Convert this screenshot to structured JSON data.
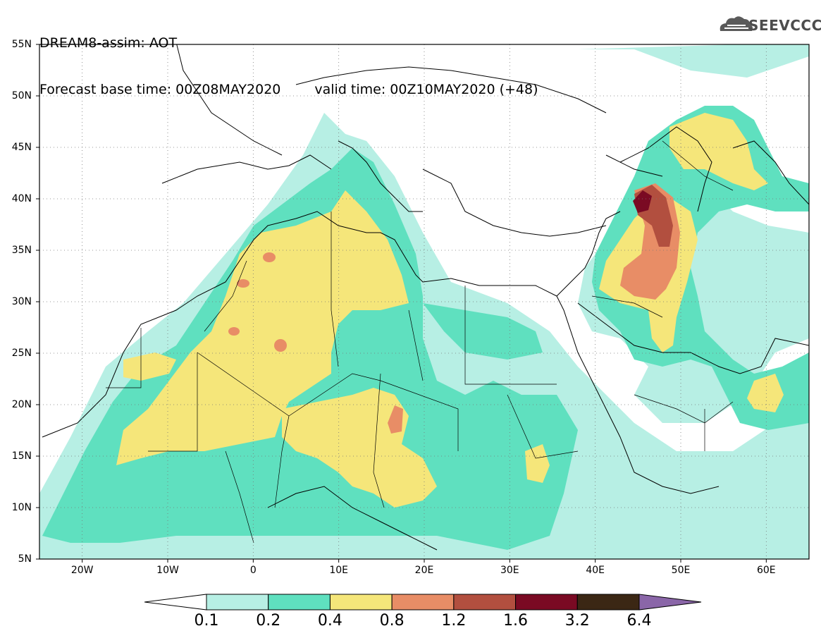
{
  "header": {
    "title_line1": "DREAM8-assim: AOT",
    "base_time_label": "Forecast base time: 00Z08MAY2020",
    "valid_time_label": "valid time: 00Z10MAY2020 (+48)",
    "logo_text": "SEEVCCC",
    "logo_icon": "cloud-icon"
  },
  "map": {
    "projection": "lat-lon",
    "lon_range": [
      -25,
      65
    ],
    "lat_range": [
      5,
      55
    ],
    "lat_ticks": [
      "55N",
      "50N",
      "45N",
      "40N",
      "35N",
      "30N",
      "25N",
      "20N",
      "15N",
      "10N",
      "5N"
    ],
    "lon_ticks": [
      "20W",
      "10W",
      "0",
      "10E",
      "20E",
      "30E",
      "40E",
      "50E",
      "60E"
    ],
    "gridlines": "dotted"
  },
  "colorbar": {
    "levels": [
      "0.1",
      "0.2",
      "0.4",
      "0.8",
      "1.2",
      "1.6",
      "3.2",
      "6.4"
    ],
    "colors": [
      "#ffffff",
      "#b7efe4",
      "#5fe0bf",
      "#f5e67a",
      "#e88d66",
      "#b24f3f",
      "#7a0a23",
      "#3b2714",
      "#8a66a8"
    ],
    "extend": "both"
  }
}
